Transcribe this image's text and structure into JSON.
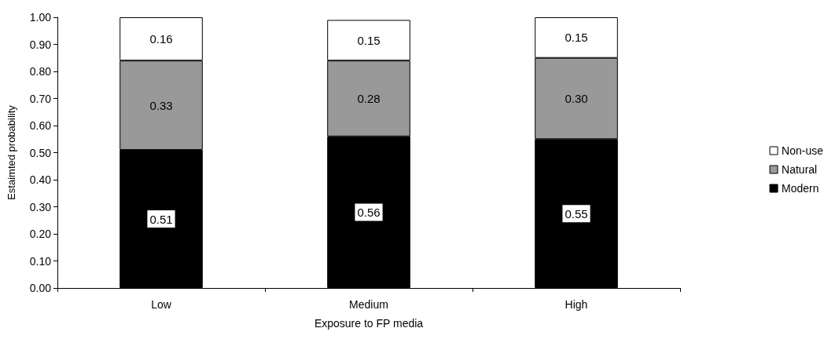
{
  "chart_data": {
    "type": "bar",
    "stacked": true,
    "xlabel": "Exposure to FP media",
    "ylabel": "Estaimted probability",
    "categories": [
      "Low",
      "Medium",
      "High"
    ],
    "series": [
      {
        "name": "Modern",
        "color": "#000000",
        "values": [
          0.51,
          0.56,
          0.55
        ],
        "value_labels": [
          "0.51",
          "0.56",
          "0.55"
        ]
      },
      {
        "name": "Natural",
        "color": "#999999",
        "values": [
          0.33,
          0.28,
          0.3
        ],
        "value_labels": [
          "0.33",
          "0.28",
          "0.30"
        ]
      },
      {
        "name": "Non-use",
        "color": "#ffffff",
        "values": [
          0.16,
          0.15,
          0.15
        ],
        "value_labels": [
          "0.16",
          "0.15",
          "0.15"
        ]
      }
    ],
    "ylim": [
      0,
      1
    ],
    "yticks": [
      {
        "value": 0,
        "label": "0.00"
      },
      {
        "value": 0.1,
        "label": "0.10"
      },
      {
        "value": 0.2,
        "label": "0.20"
      },
      {
        "value": 0.3,
        "label": "0.30"
      },
      {
        "value": 0.4,
        "label": "0.40"
      },
      {
        "value": 0.5,
        "label": "0.50"
      },
      {
        "value": 0.6,
        "label": "0.60"
      },
      {
        "value": 0.7,
        "label": "0.70"
      },
      {
        "value": 0.8,
        "label": "0.80"
      },
      {
        "value": 0.9,
        "label": "0.90"
      },
      {
        "value": 1,
        "label": "1.00"
      }
    ],
    "grid": false,
    "legend": "right"
  }
}
